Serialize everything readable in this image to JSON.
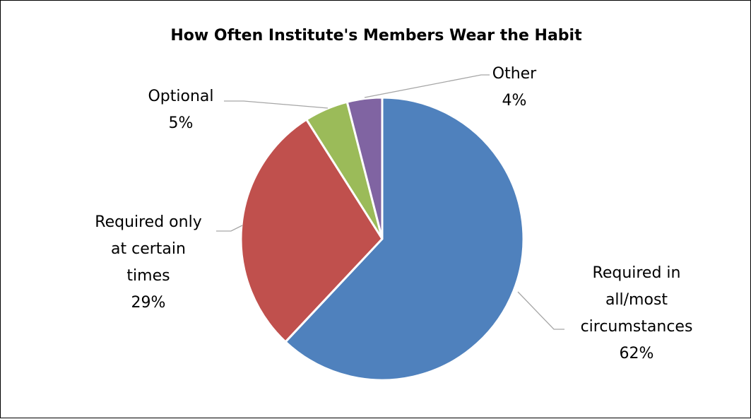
{
  "chart_data": {
    "type": "pie",
    "title": "How Often Institute's Members Wear the Habit",
    "legend": "none",
    "slices": [
      {
        "label_lines": [
          "Required in",
          "all/most",
          "circumstances"
        ],
        "percent_label": "62%",
        "value": 62,
        "color": "#4f81bd"
      },
      {
        "label_lines": [
          "Required only",
          "at certain",
          "times"
        ],
        "percent_label": "29%",
        "value": 29,
        "color": "#c0504d"
      },
      {
        "label_lines": [
          "Optional"
        ],
        "percent_label": "5%",
        "value": 5,
        "color": "#9bbb59"
      },
      {
        "label_lines": [
          "Other"
        ],
        "percent_label": "4%",
        "value": 4,
        "color": "#8064a2"
      }
    ]
  }
}
